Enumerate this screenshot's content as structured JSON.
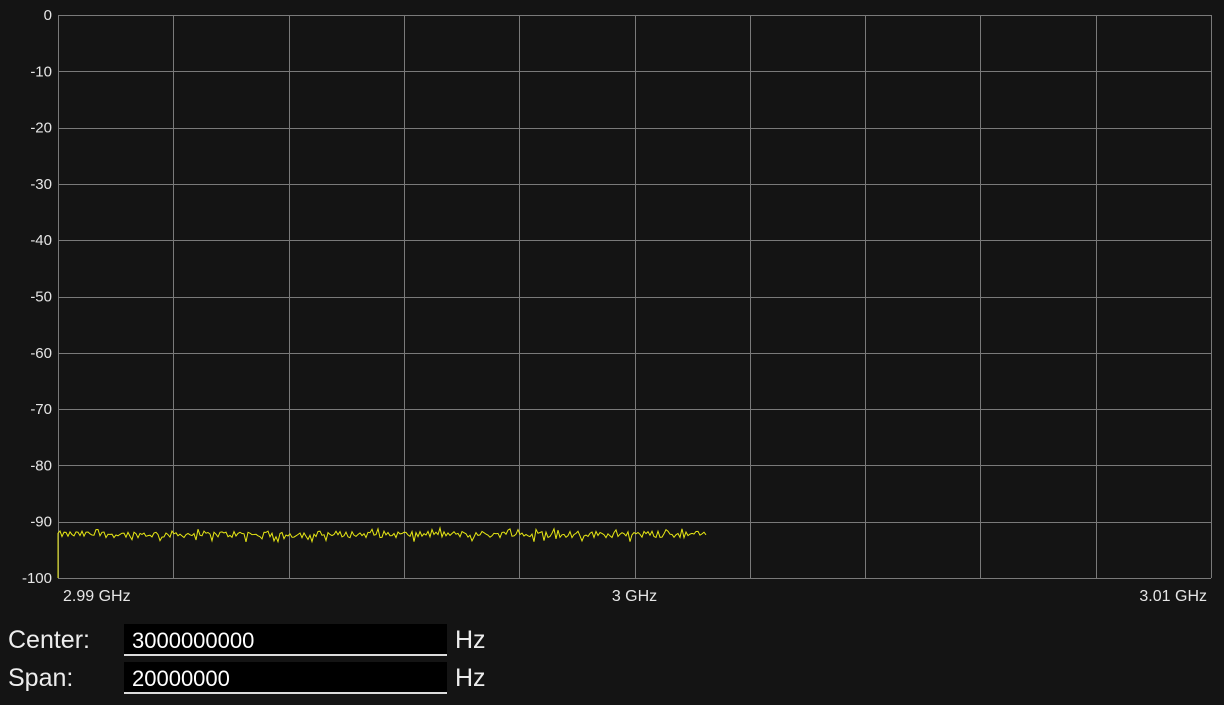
{
  "chart_data": {
    "type": "line",
    "title": "",
    "xlabel": "",
    "ylabel": "",
    "xlim": [
      2990000000,
      3010000000
    ],
    "ylim": [
      -100,
      0
    ],
    "y_ticks": [
      "0",
      "-10",
      "-20",
      "-30",
      "-40",
      "-50",
      "-60",
      "-70",
      "-80",
      "-90",
      "-100"
    ],
    "x_ticks": [
      {
        "value": 2990000000,
        "label": "2.99 GHz"
      },
      {
        "value": 3000000000,
        "label": "3 GHz"
      },
      {
        "value": 3010000000,
        "label": "3.01 GHz"
      }
    ],
    "grid": true,
    "colors": {
      "background": "#141414",
      "grid": "#7a7a7a",
      "trace": "#e8e814"
    },
    "series": [
      {
        "x_start": 2990000000,
        "x_end": 3001250000,
        "noise_floor_range": [
          -93,
          -91.5
        ],
        "start_drop_to": -100
      }
    ]
  },
  "controls": {
    "center": {
      "label": "Center:",
      "value": "3000000000",
      "unit": "Hz"
    },
    "span": {
      "label": "Span:",
      "value": "20000000",
      "unit": "Hz"
    }
  }
}
